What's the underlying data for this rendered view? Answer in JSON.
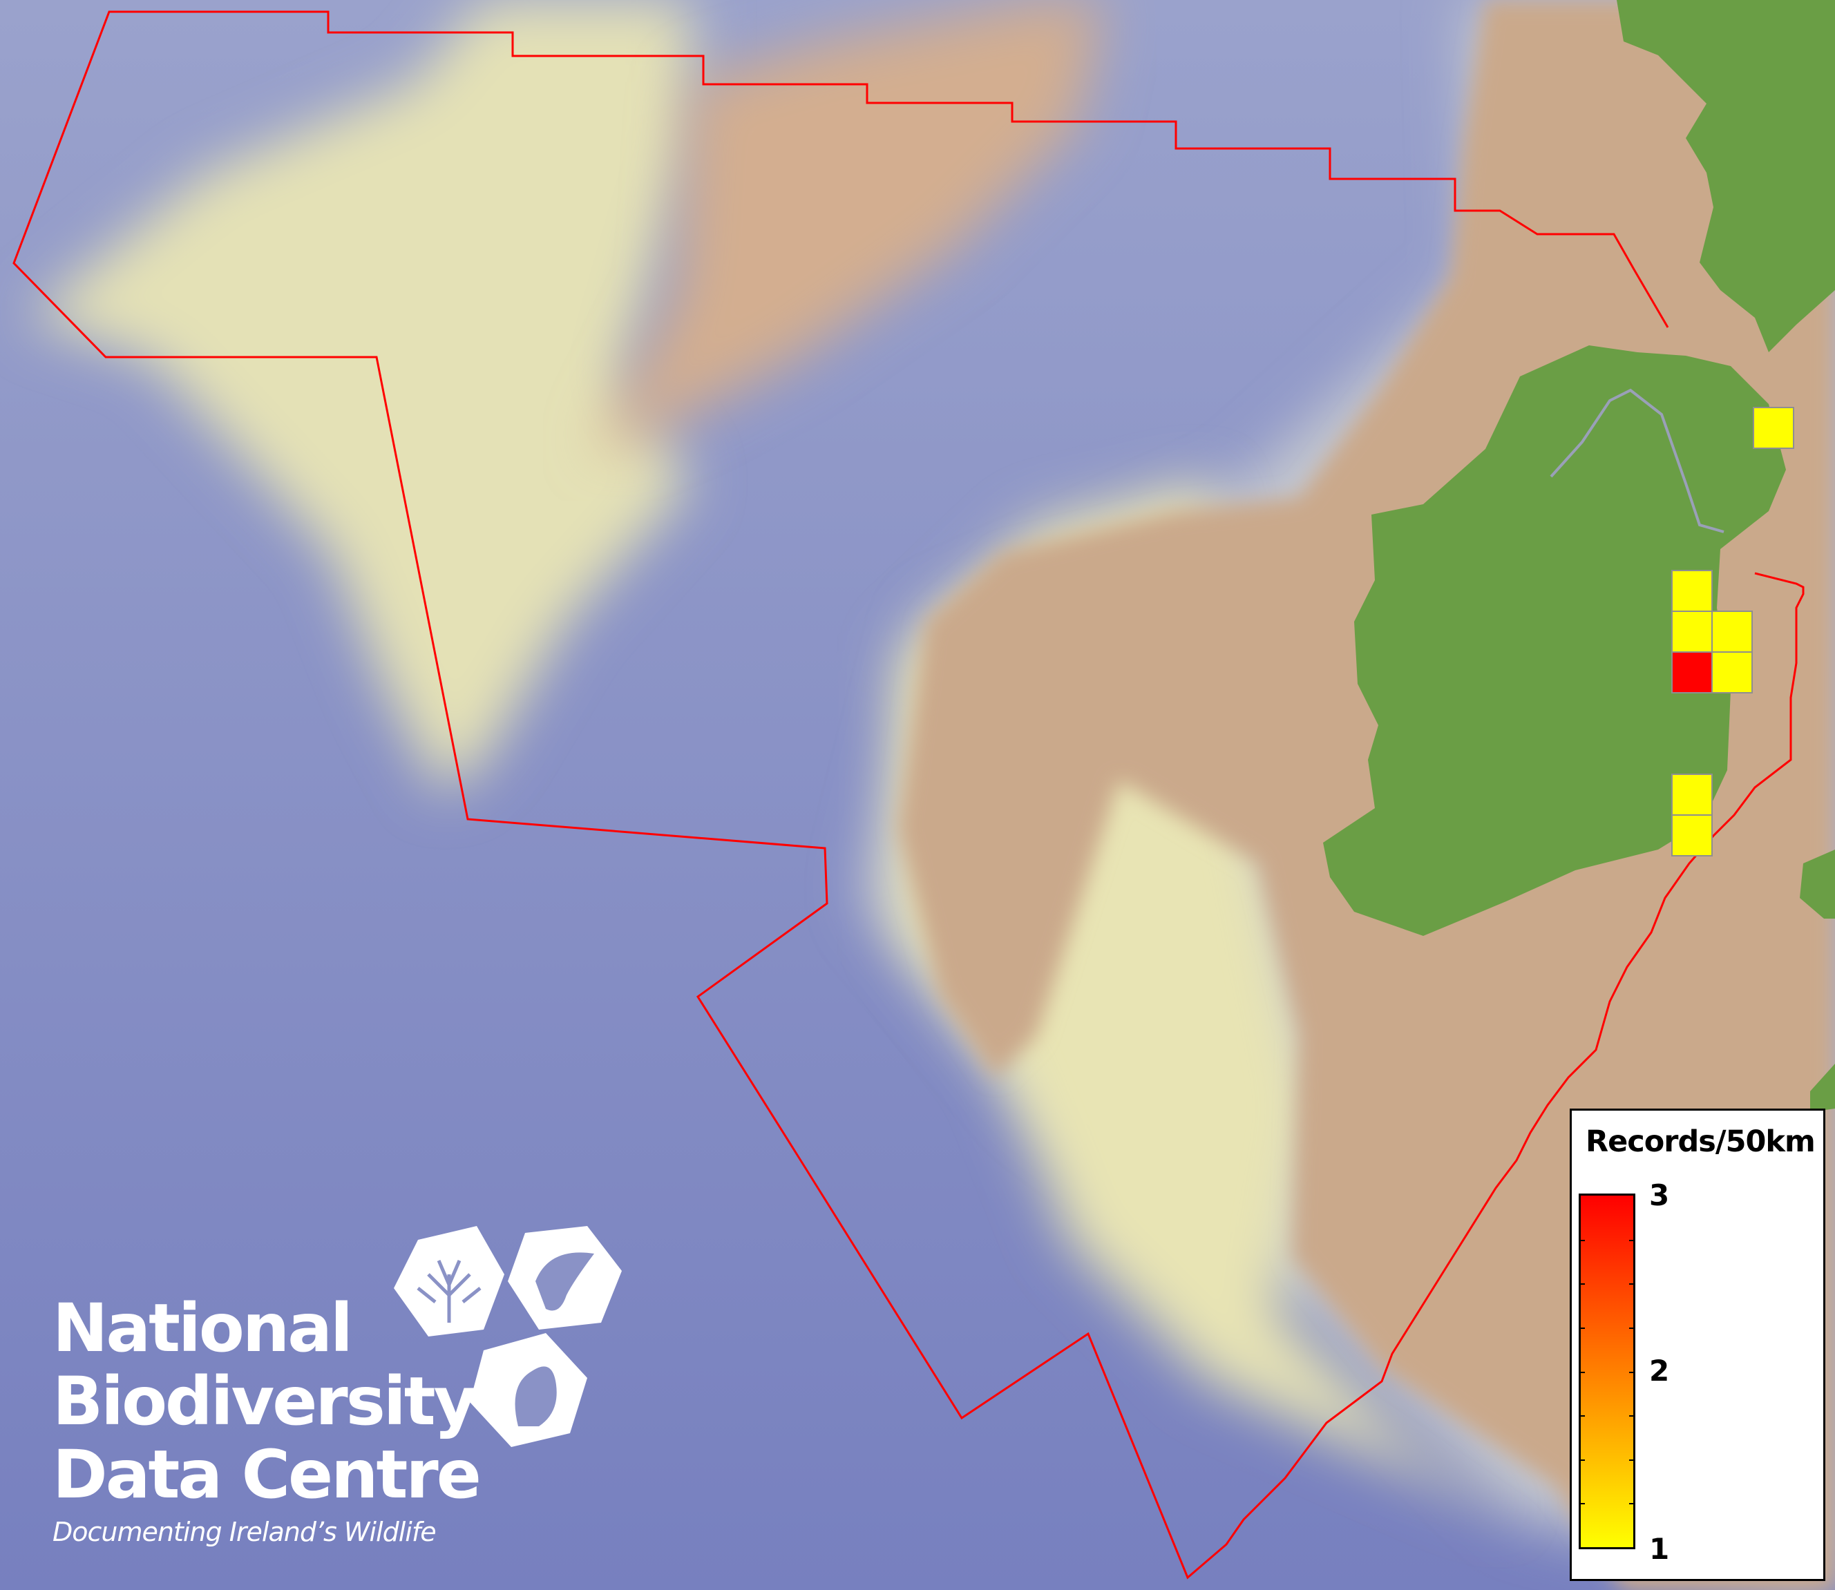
{
  "map": {
    "colors": {
      "deep_ocean": "#7e86c3",
      "shelf": "#e6e2b4",
      "plateau": "#c9a98c",
      "land": "#6a9e45",
      "boundary": "#ff0000",
      "border": "#9aa0b8"
    },
    "grid_cell_values": [
      1,
      1,
      1,
      1,
      3,
      1,
      1,
      1
    ]
  },
  "legend": {
    "title": "Records/50km",
    "ticks": [
      "3",
      "2",
      "1"
    ],
    "min": 1,
    "max": 3,
    "min_color": "#ffff00",
    "mid_color": "#ff8000",
    "max_color": "#ff0000"
  },
  "logo": {
    "line1": "National",
    "line2": "Biodiversity",
    "line3": "Data Centre",
    "tagline": "Documenting Ireland’s Wildlife"
  }
}
